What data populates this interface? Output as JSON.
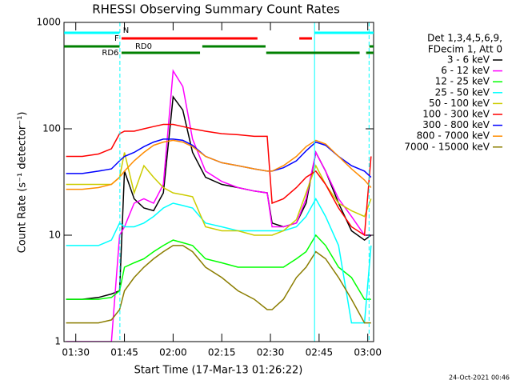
{
  "chart_data": {
    "type": "line",
    "title": "RHESSI Observing Summary Count Rates",
    "xlabel": "Start Time (17-Mar-13 01:26:22)",
    "ylabel": "Count Rate (s⁻¹ detector⁻¹)",
    "footer": "24-Oct-2021 00:46",
    "legend_header": [
      "Det 1,3,4,5,6,9,",
      "FDecim 1, Att 0"
    ],
    "ylog": true,
    "xlim": [
      86.37,
      181.8
    ],
    "ylim": [
      1,
      1000
    ],
    "xticks": [
      {
        "value": 90,
        "label": "01:30"
      },
      {
        "value": 105,
        "label": "01:45"
      },
      {
        "value": 120,
        "label": "02:00"
      },
      {
        "value": 135,
        "label": "02:15"
      },
      {
        "value": 150,
        "label": "02:30"
      },
      {
        "value": 165,
        "label": "02:45"
      },
      {
        "value": 180,
        "label": "03:00"
      }
    ],
    "yticks": [
      1,
      10,
      100,
      1000
    ],
    "x": [
      87,
      92,
      97,
      101,
      103.5,
      105,
      108,
      111,
      114,
      117,
      120,
      123,
      126,
      130,
      135,
      140,
      145,
      149,
      150.5,
      154,
      158,
      161,
      164,
      167,
      171,
      175,
      179,
      181
    ],
    "series": [
      {
        "name": "3 - 6 keV",
        "color": "#000000",
        "values": [
          2.5,
          2.5,
          2.6,
          2.8,
          3,
          40,
          22,
          18,
          17,
          25,
          200,
          150,
          60,
          35,
          30,
          28,
          26,
          25,
          13,
          12,
          13,
          20,
          60,
          40,
          20,
          11,
          9,
          10
        ]
      },
      {
        "name": "6 - 12 keV",
        "color": "#ff00ff",
        "values": [
          1,
          1,
          1,
          1,
          10,
          12,
          20,
          22,
          20,
          30,
          350,
          250,
          80,
          40,
          32,
          28,
          26,
          25,
          12,
          12,
          13,
          22,
          60,
          40,
          22,
          15,
          10,
          10
        ]
      },
      {
        "name": "12 - 25 keV",
        "color": "#00ff00",
        "values": [
          2.5,
          2.5,
          2.5,
          2.6,
          3,
          5,
          5.5,
          6,
          7,
          8,
          9,
          8.5,
          8,
          6,
          5.5,
          5,
          5,
          5,
          5,
          5,
          6,
          7,
          10,
          8,
          5,
          4,
          2.5,
          2.5
        ]
      },
      {
        "name": "25 - 50 keV",
        "color": "#00ffff",
        "values": [
          8,
          8,
          8,
          9,
          13,
          12,
          12,
          13,
          15,
          18,
          20,
          19,
          18,
          13,
          12,
          11,
          11,
          11,
          11,
          11,
          12,
          15,
          22,
          15,
          8,
          1.5,
          1.5,
          8
        ]
      },
      {
        "name": "50 - 100 keV",
        "color": "#cccc00",
        "values": [
          30,
          30,
          30,
          30,
          35,
          60,
          25,
          45,
          35,
          28,
          25,
          24,
          23,
          12,
          11,
          11,
          10,
          10,
          10,
          11,
          14,
          25,
          45,
          30,
          20,
          17,
          15,
          22
        ]
      },
      {
        "name": "100 - 300 keV",
        "color": "#ff0000",
        "values": [
          55,
          55,
          58,
          65,
          90,
          95,
          95,
          100,
          105,
          110,
          110,
          105,
          100,
          95,
          90,
          88,
          85,
          85,
          20,
          22,
          28,
          35,
          40,
          30,
          18,
          12,
          10,
          55
        ]
      },
      {
        "name": "300 - 800 keV",
        "color": "#0000ff",
        "values": [
          38,
          38,
          40,
          42,
          50,
          55,
          60,
          68,
          75,
          80,
          80,
          78,
          70,
          55,
          48,
          45,
          42,
          40,
          40,
          43,
          50,
          62,
          75,
          70,
          55,
          45,
          40,
          35
        ]
      },
      {
        "name": "800 - 7000 keV",
        "color": "#ff8c00",
        "values": [
          27,
          27,
          28,
          30,
          35,
          40,
          50,
          60,
          70,
          75,
          78,
          75,
          68,
          55,
          48,
          45,
          42,
          40,
          40,
          45,
          55,
          68,
          78,
          72,
          55,
          42,
          33,
          28
        ]
      },
      {
        "name": "7000 - 15000 keV",
        "color": "#8b7d00",
        "values": [
          1.5,
          1.5,
          1.5,
          1.6,
          2,
          3,
          4,
          5,
          6,
          7,
          8,
          8,
          7,
          5,
          4,
          3,
          2.5,
          2,
          2,
          2.5,
          4,
          5,
          7,
          6,
          4,
          2.5,
          1.5,
          1.5
        ]
      }
    ],
    "flags": [
      {
        "label": "N",
        "color": "#00ffff",
        "segments": [
          [
            86.4,
            103.5
          ],
          [
            163.6,
            181.8
          ]
        ]
      },
      {
        "label": "F",
        "color": "#ff0000",
        "segments": [
          [
            104.1,
            146.0
          ],
          [
            158.9,
            162.8
          ]
        ]
      },
      {
        "label": "RD0",
        "color": "#008000",
        "segments": [
          [
            86.4,
            103.5
          ],
          [
            129.0,
            148.5
          ],
          [
            180.5,
            181.8
          ]
        ]
      },
      {
        "label": "RD6",
        "color": "#008000",
        "segments": [
          [
            104.1,
            128.3
          ],
          [
            148.7,
            177.5
          ],
          [
            179.5,
            181.8
          ]
        ]
      }
    ],
    "vlines": [
      {
        "x": 103.6,
        "color": "#00ffff",
        "dashed": true
      },
      {
        "x": 163.6,
        "color": "#00ffff",
        "dashed": false
      },
      {
        "x": 180.4,
        "color": "#00ffff",
        "dashed": true
      }
    ]
  }
}
